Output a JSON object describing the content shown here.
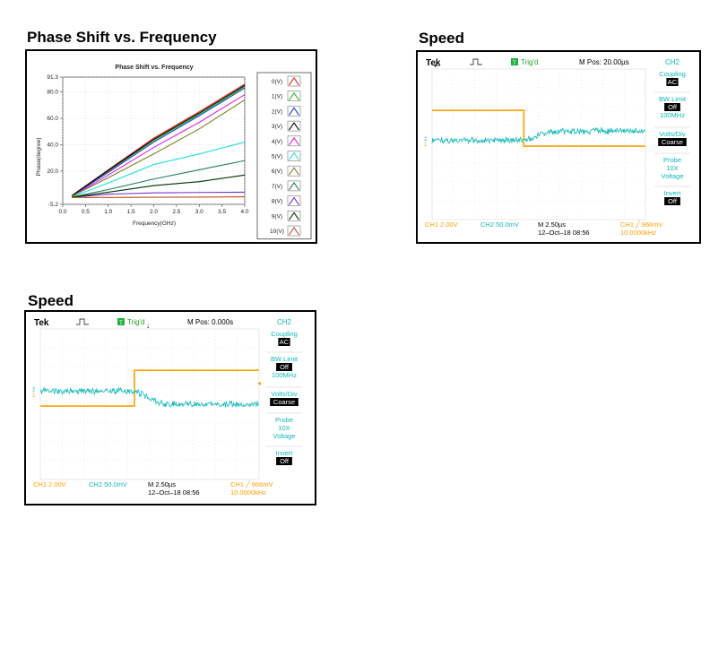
{
  "panels": {
    "phase": {
      "heading": "Phase Shift vs. Frequency"
    },
    "speed1": {
      "heading": "Speed"
    },
    "speed2": {
      "heading": "Speed"
    }
  },
  "scopes": {
    "s1": {
      "brand": "Tek",
      "status": "Trig'd",
      "mpos": "M Pos: 20.00µs",
      "ch2": "CH2",
      "menu": {
        "coupling_label": "Coupling",
        "coupling_value": "AC",
        "bw_label": "BW Limit",
        "bw_value": "Off",
        "bw_extra": "100MHz",
        "volts_label": "Volts/Div",
        "volts_value": "Coarse",
        "probe_label": "Probe",
        "probe_value": "10X",
        "probe_extra": "Voltage",
        "invert_label": "Invert",
        "invert_value": "Off"
      },
      "footer": {
        "ch1": "CH1  2.00V",
        "ch2": "CH2  50.0mV",
        "timebase": "M 2.50µs",
        "date": "12–Oct–18 08:56",
        "trig": "CH1 ╱ 966mV",
        "freq": "10.0000kHz"
      }
    },
    "s2": {
      "brand": "Tek",
      "status": "Trig'd",
      "mpos": "M Pos: 0.000s",
      "ch2": "CH2",
      "menu": {
        "coupling_label": "Coupling",
        "coupling_value": "AC",
        "bw_label": "BW Limit",
        "bw_value": "Off",
        "bw_extra": "100MHz",
        "volts_label": "Volts/Div",
        "volts_value": "Coarse",
        "probe_label": "Probe",
        "probe_value": "10X",
        "probe_extra": "Voltage",
        "invert_label": "Invert",
        "invert_value": "Off"
      },
      "footer": {
        "ch1": "CH1  2.00V",
        "ch2": "CH2  50.0mV",
        "timebase": "M 2.50µs",
        "date": "12–Oct–18 08:56",
        "trig": "CH1 ╱ 966mV",
        "freq": "10.0000kHz"
      }
    }
  },
  "chart_data": [
    {
      "type": "line",
      "title": "Phase Shift vs. Frequency",
      "xlabel": "Frequency(GHz)",
      "ylabel": "Phase(degree)",
      "xlim": [
        0.0,
        4.0
      ],
      "ylim": [
        -5.2,
        91.3
      ],
      "xticks": [
        "0.0",
        "0.5",
        "1.0",
        "1.5",
        "2.0",
        "2.5",
        "3.0",
        "3.5",
        "4.0"
      ],
      "yticks": [
        "-5.2",
        "20.0",
        "40.0",
        "60.0",
        "80.0",
        "91.3"
      ],
      "x": [
        0.2,
        1.0,
        2.0,
        3.0,
        4.0
      ],
      "series": [
        {
          "name": "0(V)",
          "color": "#e02020",
          "values": [
            1.5,
            21,
            45,
            65,
            86
          ]
        },
        {
          "name": "1(V)",
          "color": "#20c020",
          "values": [
            1.2,
            20,
            43,
            63,
            84
          ]
        },
        {
          "name": "2(V)",
          "color": "#2040e0",
          "values": [
            1.1,
            19,
            42,
            62,
            83
          ]
        },
        {
          "name": "3(V)",
          "color": "#000000",
          "values": [
            1.4,
            20.5,
            44,
            64,
            85
          ]
        },
        {
          "name": "4(V)",
          "color": "#e020e0",
          "values": [
            0.8,
            17,
            38,
            57,
            78
          ]
        },
        {
          "name": "5(V)",
          "color": "#20e0e0",
          "values": [
            0.5,
            11,
            25,
            33,
            42
          ]
        },
        {
          "name": "6(V)",
          "color": "#808020",
          "values": [
            0.9,
            15,
            33,
            52,
            74
          ]
        },
        {
          "name": "7(V)",
          "color": "#208060",
          "values": [
            0.3,
            6,
            14,
            21,
            28
          ]
        },
        {
          "name": "8(V)",
          "color": "#7030d0",
          "values": [
            0.1,
            2.5,
            3.5,
            3.8,
            4.0
          ]
        },
        {
          "name": "9(V)",
          "color": "#003000",
          "values": [
            0.2,
            4,
            9,
            12,
            17
          ]
        },
        {
          "name": "10(V)",
          "color": "#c05020",
          "values": [
            0.0,
            0.0,
            0.2,
            0.3,
            0.5
          ]
        }
      ],
      "legend": "right",
      "grid": true
    },
    {
      "type": "line",
      "title": "Speed",
      "x_divisions": 10,
      "y_divisions": 8,
      "series": [
        {
          "name": "CH1",
          "color": "#ffa000",
          "step_at_division": 4.3,
          "level_before_div": 5.8,
          "level_after_div": 3.9
        },
        {
          "name": "CH2",
          "color": "#10b8b8",
          "level_before_div": 4.2,
          "level_after_div": 4.7
        }
      ]
    },
    {
      "type": "line",
      "title": "Speed",
      "x_divisions": 10,
      "y_divisions": 8,
      "series": [
        {
          "name": "CH1",
          "color": "#ffa000",
          "step_at_division": 4.3,
          "level_before_div": 3.9,
          "level_after_div": 5.8
        },
        {
          "name": "CH2",
          "color": "#10b8b8",
          "level_before_div": 4.7,
          "level_after_div": 4.0
        }
      ]
    }
  ]
}
